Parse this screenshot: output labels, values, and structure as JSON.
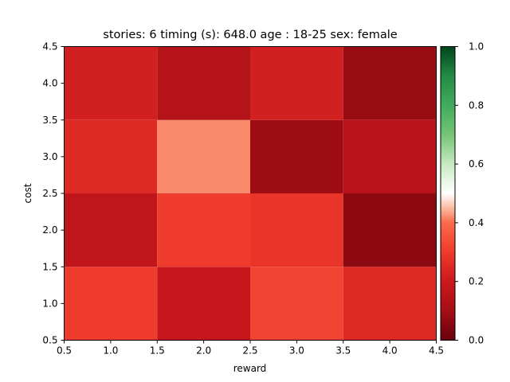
{
  "chart_data": {
    "type": "heatmap",
    "title": "stories: 6 timing (s): 648.0 age : 18-25 sex: female",
    "xlabel": "reward",
    "ylabel": "cost",
    "x_centers": [
      1,
      2,
      3,
      4
    ],
    "y_centers": [
      1,
      2,
      3,
      4
    ],
    "xlim": [
      0.5,
      4.5
    ],
    "ylim": [
      0.5,
      4.5
    ],
    "x_ticks": [
      "0.5",
      "1.0",
      "1.5",
      "2.0",
      "2.5",
      "3.0",
      "3.5",
      "4.0",
      "4.5"
    ],
    "y_ticks": [
      "0.5",
      "1.0",
      "1.5",
      "2.0",
      "2.5",
      "3.0",
      "3.5",
      "4.0",
      "4.5"
    ],
    "values": [
      [
        0.3,
        0.19,
        0.32,
        0.25
      ],
      [
        0.17,
        0.3,
        0.28,
        0.06
      ],
      [
        0.25,
        0.42,
        0.09,
        0.15
      ],
      [
        0.22,
        0.14,
        0.22,
        0.08
      ]
    ],
    "value_layout": "values[row][col]; row 0 is cost=1 (bottom), col 0 is reward=1 (left)",
    "colormap": "RdGn (red 0 to white 0.5 to green 1)",
    "colorbar": {
      "range": [
        0.0,
        1.0
      ],
      "ticks": [
        "0.0",
        "0.2",
        "0.4",
        "0.6",
        "0.8",
        "1.0"
      ]
    }
  }
}
